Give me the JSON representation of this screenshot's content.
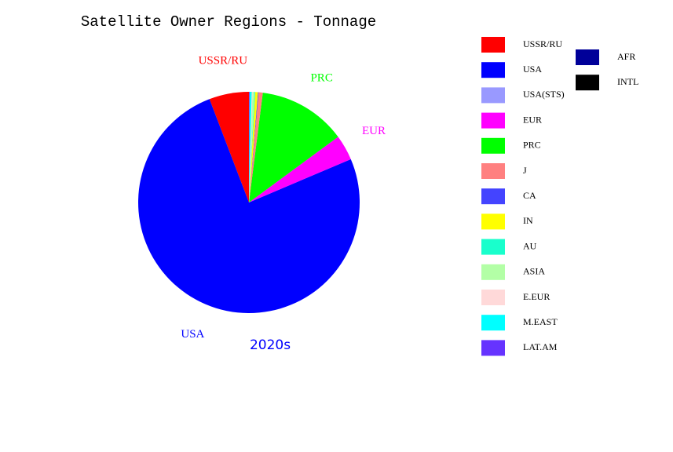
{
  "chart_data": {
    "type": "pie",
    "title": "Satellite Owner Regions - Tonnage",
    "subtitle": "2020s",
    "categories": [
      "USSR/RU",
      "USA",
      "USA(STS)",
      "EUR",
      "PRC",
      "J",
      "CA",
      "IN",
      "AU",
      "ASIA",
      "E.EUR",
      "M.EAST",
      "LAT.AM",
      "AFR",
      "INTL"
    ],
    "values": [
      5.8,
      75.6,
      0,
      3.7,
      12.9,
      0.6,
      0.1,
      0.4,
      0.1,
      0.3,
      0.1,
      0.3,
      0.1,
      0,
      0
    ],
    "colors": [
      "#ff0000",
      "#0000ff",
      "#9999ff",
      "#ff00ff",
      "#00ff00",
      "#ff8080",
      "#4444ff",
      "#ffff00",
      "#19ffcc",
      "#b3ffa6",
      "#ffd9d9",
      "#00ffff",
      "#6633ff",
      "#000099",
      "#000000"
    ],
    "direction": "counterclockwise"
  }
}
